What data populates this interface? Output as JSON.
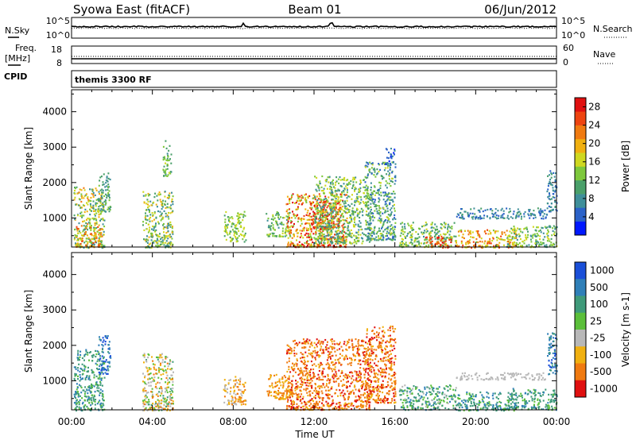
{
  "header": {
    "station": "Syowa East (fitACF)",
    "beam": "Beam 01",
    "date": "06/Jun/2012"
  },
  "top_panels": {
    "nsky_label": "N.Sky",
    "nsearch_label": "N.Search",
    "noise_ticks_left": [
      "10^5",
      "10^0"
    ],
    "noise_ticks_right": [
      "10^5",
      "10^0"
    ],
    "freq_label_1": "Freq.",
    "freq_label_2": "[MHz]",
    "freq_ticks": [
      "18",
      "8"
    ],
    "nave_label": "Nave",
    "nave_ticks": [
      "60",
      "0"
    ],
    "cpid_label": "CPID",
    "cpid_text": "themis 3300 RF"
  },
  "chart_data": [
    {
      "type": "heatmap",
      "name": "power",
      "xlabel": "Time UT",
      "ylabel": "Slant Range [km]",
      "x_ticks": [
        "00:00",
        "04:00",
        "08:00",
        "12:00",
        "16:00",
        "20:00",
        "00:00"
      ],
      "y_ticks": [
        1000,
        2000,
        3000,
        4000
      ],
      "xlim_hours": [
        0,
        24
      ],
      "ylim_km": [
        180,
        4620
      ],
      "colorbar": {
        "label": "Power [dB]",
        "ticks": [
          4,
          8,
          12,
          16,
          20,
          24,
          28
        ],
        "range": [
          0,
          30
        ],
        "colors": [
          "#0018ff",
          "#2b62c8",
          "#3f8f9a",
          "#4aa06a",
          "#7ec83c",
          "#cfd820",
          "#f0b010",
          "#f07a10",
          "#ee4410",
          "#e01010"
        ]
      },
      "clusters": [
        {
          "t": [
            0.1,
            1.6
          ],
          "r": [
            180,
            1900
          ],
          "v": [
            6,
            22
          ]
        },
        {
          "t": [
            0.2,
            1.5
          ],
          "r": [
            200,
            800
          ],
          "v": [
            14,
            26
          ]
        },
        {
          "t": [
            1.3,
            1.9
          ],
          "r": [
            1200,
            2300
          ],
          "v": [
            6,
            14
          ]
        },
        {
          "t": [
            3.5,
            5.0
          ],
          "r": [
            180,
            1800
          ],
          "v": [
            6,
            20
          ]
        },
        {
          "t": [
            4.5,
            4.9
          ],
          "r": [
            2200,
            3200
          ],
          "v": [
            8,
            16
          ]
        },
        {
          "t": [
            7.5,
            8.6
          ],
          "r": [
            350,
            1200
          ],
          "v": [
            10,
            18
          ]
        },
        {
          "t": [
            9.6,
            10.8
          ],
          "r": [
            500,
            1200
          ],
          "v": [
            8,
            16
          ]
        },
        {
          "t": [
            10.6,
            13.6
          ],
          "r": [
            200,
            1700
          ],
          "v": [
            12,
            30
          ]
        },
        {
          "t": [
            11.8,
            13.2
          ],
          "r": [
            700,
            1500
          ],
          "v": [
            20,
            30
          ]
        },
        {
          "t": [
            12.0,
            14.8
          ],
          "r": [
            300,
            2200
          ],
          "v": [
            6,
            18
          ]
        },
        {
          "t": [
            14.5,
            16.0
          ],
          "r": [
            400,
            2600
          ],
          "v": [
            4,
            16
          ]
        },
        {
          "t": [
            15.5,
            16.0
          ],
          "r": [
            2500,
            3000
          ],
          "v": [
            2,
            8
          ]
        },
        {
          "t": [
            16.2,
            19.0
          ],
          "r": [
            200,
            900
          ],
          "v": [
            8,
            18
          ]
        },
        {
          "t": [
            17.5,
            18.8
          ],
          "r": [
            180,
            500
          ],
          "v": [
            22,
            30
          ]
        },
        {
          "t": [
            19.0,
            22.0
          ],
          "r": [
            180,
            700
          ],
          "v": [
            14,
            26
          ]
        },
        {
          "t": [
            19.0,
            23.5
          ],
          "r": [
            1000,
            1300
          ],
          "v": [
            4,
            10
          ]
        },
        {
          "t": [
            21.5,
            24.0
          ],
          "r": [
            200,
            800
          ],
          "v": [
            6,
            18
          ]
        },
        {
          "t": [
            23.5,
            24.0
          ],
          "r": [
            1200,
            2400
          ],
          "v": [
            4,
            10
          ]
        }
      ]
    },
    {
      "type": "heatmap",
      "name": "velocity",
      "xlabel": "Time UT",
      "ylabel": "Slant Range [km]",
      "x_ticks": [
        "00:00",
        "04:00",
        "08:00",
        "12:00",
        "16:00",
        "20:00",
        "00:00"
      ],
      "y_ticks": [
        1000,
        2000,
        3000,
        4000
      ],
      "xlim_hours": [
        0,
        24
      ],
      "ylim_km": [
        180,
        4620
      ],
      "colorbar": {
        "label": "Velocity [m s-1]",
        "tick_labels": [
          "1000",
          "500",
          "100",
          "25",
          "-25",
          "-100",
          "-500",
          "-1000"
        ],
        "colors": [
          "#1a4fd8",
          "#2f7fb8",
          "#3f9a7a",
          "#5bbf3a",
          "#b8b8b8",
          "#f0b010",
          "#f07a10",
          "#e01010"
        ]
      },
      "clusters": [
        {
          "t": [
            0.1,
            1.6
          ],
          "r": [
            180,
            1900
          ],
          "v": [
            1,
            3
          ]
        },
        {
          "t": [
            1.3,
            1.9
          ],
          "r": [
            1200,
            2300
          ],
          "v": [
            0,
            2
          ]
        },
        {
          "t": [
            3.5,
            5.0
          ],
          "r": [
            180,
            1800
          ],
          "v": [
            2,
            6
          ]
        },
        {
          "t": [
            7.5,
            8.6
          ],
          "r": [
            350,
            1200
          ],
          "v": [
            4,
            6
          ]
        },
        {
          "t": [
            9.6,
            10.8
          ],
          "r": [
            500,
            1200
          ],
          "v": [
            5,
            6
          ]
        },
        {
          "t": [
            10.6,
            14.8
          ],
          "r": [
            200,
            2200
          ],
          "v": [
            5,
            7
          ]
        },
        {
          "t": [
            14.5,
            16.0
          ],
          "r": [
            400,
            2600
          ],
          "v": [
            5,
            7
          ]
        },
        {
          "t": [
            16.2,
            19.0
          ],
          "r": [
            200,
            900
          ],
          "v": [
            1,
            4
          ]
        },
        {
          "t": [
            19.0,
            22.0
          ],
          "r": [
            180,
            700
          ],
          "v": [
            1,
            3
          ]
        },
        {
          "t": [
            19.0,
            23.5
          ],
          "r": [
            1050,
            1250
          ],
          "v": [
            4,
            4
          ]
        },
        {
          "t": [
            21.5,
            24.0
          ],
          "r": [
            200,
            800
          ],
          "v": [
            1,
            3
          ]
        },
        {
          "t": [
            23.5,
            24.0
          ],
          "r": [
            1200,
            2400
          ],
          "v": [
            0,
            2
          ]
        }
      ]
    }
  ]
}
